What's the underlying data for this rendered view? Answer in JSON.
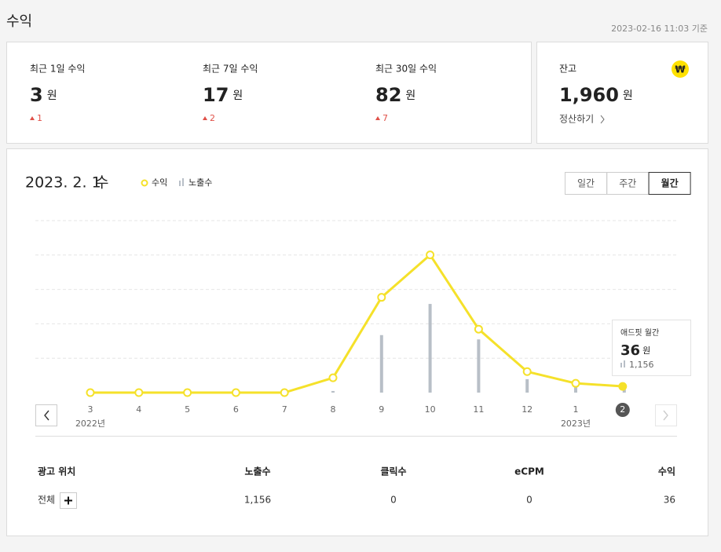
{
  "header": {
    "title": "수익",
    "timestamp": "2023-02-16 11:03 기준"
  },
  "stats": [
    {
      "label": "최근 1일 수익",
      "value": "3",
      "unit": "원",
      "change": "1"
    },
    {
      "label": "최근 7일 수익",
      "value": "17",
      "unit": "원",
      "change": "2"
    },
    {
      "label": "최근 30일 수익",
      "value": "82",
      "unit": "원",
      "change": "7"
    }
  ],
  "balance": {
    "label": "잔고",
    "value": "1,960",
    "unit": "원",
    "action": "정산하기",
    "icon": "₩"
  },
  "chart_header": {
    "date": "2023. 2. 1",
    "weekday": "수"
  },
  "tabs": {
    "items": [
      "일간",
      "주간",
      "월간"
    ],
    "active": 2
  },
  "chart_data": {
    "type": "line_bar",
    "categories": [
      "3",
      "4",
      "5",
      "6",
      "7",
      "8",
      "9",
      "10",
      "11",
      "12",
      "1",
      "2"
    ],
    "x_sublabels": [
      "2022년",
      null,
      null,
      null,
      null,
      null,
      null,
      null,
      null,
      null,
      "2023년",
      null
    ],
    "selected_index": 11,
    "series": [
      {
        "name": "수익",
        "type": "line",
        "color": "#f5e12a",
        "values": [
          0,
          0,
          0,
          0,
          0,
          86,
          554,
          801,
          369,
          122,
          54,
          36
        ]
      },
      {
        "name": "노출수",
        "type": "bar",
        "axis": "y2",
        "color": "#b8bfc7",
        "values": [
          0,
          0,
          0,
          0,
          0,
          300,
          10700,
          16500,
          9900,
          2500,
          1200,
          1156
        ]
      }
    ],
    "ylim": [
      0,
      1000
    ],
    "yticks": [
      0,
      200,
      400,
      600,
      800,
      1000
    ],
    "y2lim": [
      0,
      32000
    ],
    "grid": true,
    "tooltip": {
      "title": "애드핏 월간",
      "value": "36",
      "unit": "원",
      "impressions": "1,156"
    }
  },
  "table": {
    "headers": [
      "광고 위치",
      "노출수",
      "클릭수",
      "eCPM",
      "수익"
    ],
    "rows": [
      [
        "전체",
        "1,156",
        "0",
        "0",
        "36"
      ]
    ]
  }
}
